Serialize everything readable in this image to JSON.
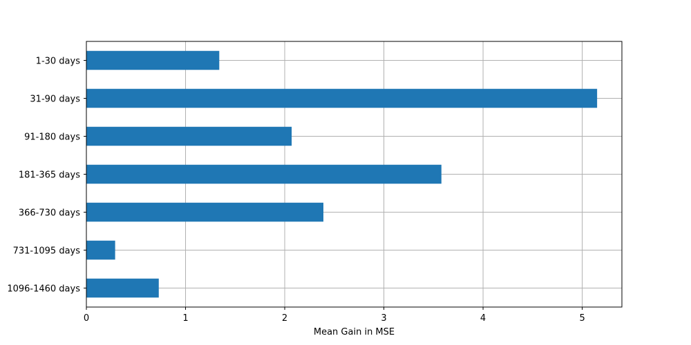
{
  "chart_data": {
    "type": "bar",
    "orientation": "horizontal",
    "categories": [
      "1-30 days",
      "31-90 days",
      "91-180 days",
      "181-365 days",
      "366-730 days",
      "731-1095 days",
      "1096-1460 days"
    ],
    "values": [
      1.34,
      5.15,
      2.07,
      3.58,
      2.39,
      0.29,
      0.73
    ],
    "title": "",
    "xlabel": "Mean Gain in MSE",
    "ylabel": "",
    "xlim": [
      0,
      5.4
    ],
    "xticks": [
      "0",
      "1",
      "2",
      "3",
      "4",
      "5"
    ],
    "grid": true,
    "legend": "none",
    "bar_color": "#1f77b4",
    "grid_color": "#b0b0b0"
  }
}
